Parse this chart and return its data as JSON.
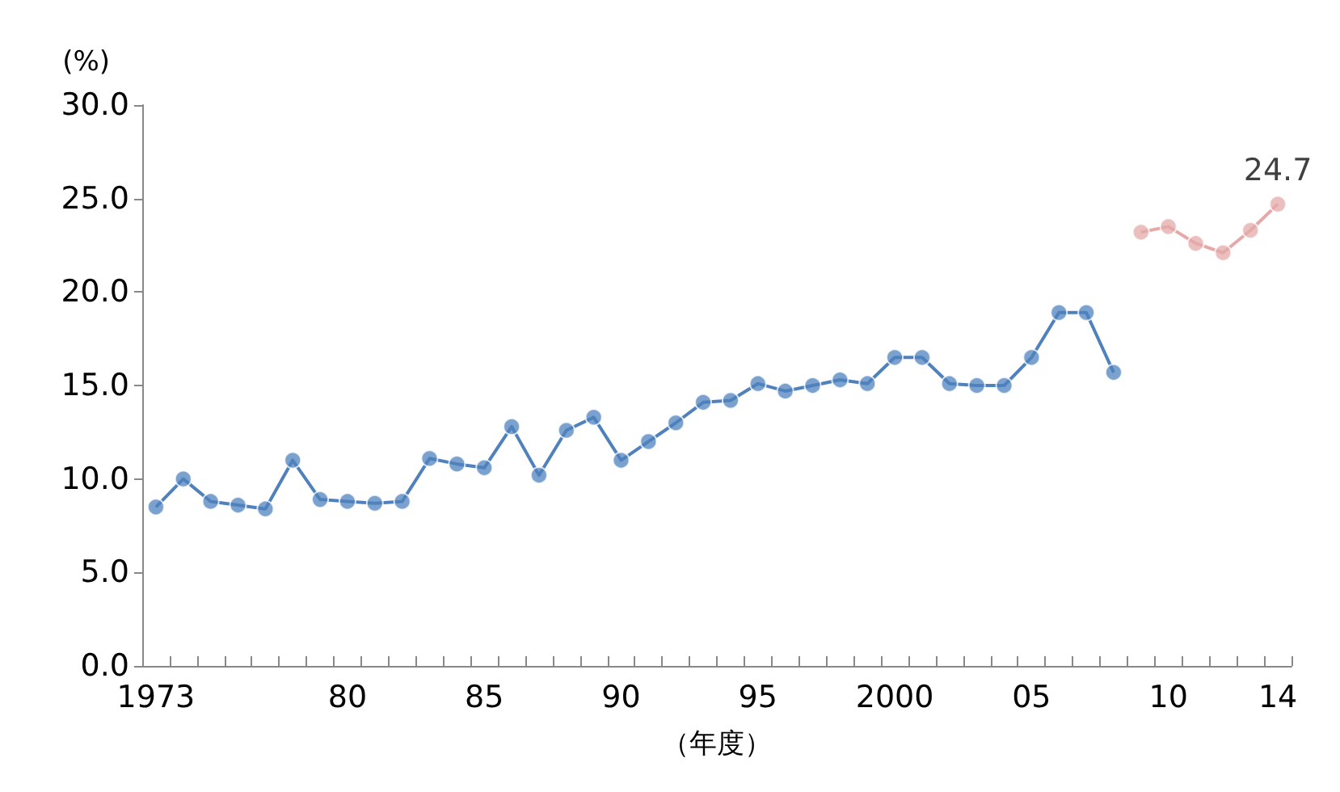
{
  "chart_data": {
    "type": "line",
    "ylabel": "(%)",
    "xlabel": "（年度）",
    "categories": [
      "1973",
      null,
      null,
      null,
      null,
      null,
      null,
      "80",
      null,
      null,
      null,
      null,
      "85",
      null,
      null,
      null,
      null,
      "90",
      null,
      null,
      null,
      null,
      "95",
      null,
      null,
      null,
      null,
      "2000",
      null,
      null,
      null,
      null,
      "05",
      null,
      null,
      null,
      null,
      "10",
      null,
      null,
      null,
      "14"
    ],
    "series": [
      {
        "color": "#4f81bd",
        "values": [
          8.5,
          10.0,
          8.8,
          8.6,
          8.4,
          11.0,
          8.9,
          8.8,
          8.7,
          8.8,
          11.1,
          10.8,
          10.6,
          12.8,
          10.2,
          12.6,
          13.3,
          11.0,
          12.0,
          13.0,
          14.1,
          14.2,
          15.1,
          14.7,
          15.0,
          15.3,
          15.1,
          16.5,
          16.5,
          15.1,
          15.0,
          15.0,
          16.5,
          18.9,
          18.9,
          15.7,
          null,
          null,
          null,
          null,
          null,
          null
        ]
      },
      {
        "color": "#e6a9a9",
        "values": [
          null,
          null,
          null,
          null,
          null,
          null,
          null,
          null,
          null,
          null,
          null,
          null,
          null,
          null,
          null,
          null,
          null,
          null,
          null,
          null,
          null,
          null,
          null,
          null,
          null,
          null,
          null,
          null,
          null,
          null,
          null,
          null,
          null,
          null,
          null,
          null,
          23.2,
          23.5,
          22.6,
          22.1,
          23.3,
          24.7
        ],
        "value_labels": [
          null,
          null,
          null,
          null,
          null,
          null,
          null,
          null,
          null,
          null,
          null,
          null,
          null,
          null,
          null,
          null,
          null,
          null,
          null,
          null,
          null,
          null,
          null,
          null,
          null,
          null,
          null,
          null,
          null,
          null,
          null,
          null,
          null,
          null,
          null,
          null,
          null,
          null,
          null,
          null,
          null,
          "24.7"
        ]
      }
    ],
    "ylim": [
      0,
      30
    ],
    "yticks": [
      {
        "value": 0,
        "label": "0.0"
      },
      {
        "value": 5,
        "label": "5.0"
      },
      {
        "value": 10,
        "label": "10.0"
      },
      {
        "value": 15,
        "label": "15.0"
      },
      {
        "value": 20,
        "label": "20.0"
      },
      {
        "value": 25,
        "label": "25.0"
      },
      {
        "value": 30,
        "label": "30.0"
      }
    ],
    "grid": false,
    "marker": "circle",
    "line_style": "solid"
  }
}
